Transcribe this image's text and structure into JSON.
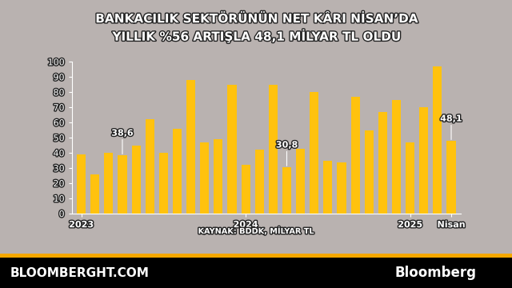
{
  "chart_data": {
    "type": "bar",
    "title": "BANKACILIK SEKTÖRÜNÜN NET KÂRI NİSAN’DA\nYILLIK %56 ARTIŞLA 48,1 MİLYAR TL OLDU",
    "source": "KAYNAK: BDDK, MİLYAR TL",
    "categories": [
      "2023",
      null,
      null,
      null,
      null,
      null,
      null,
      null,
      null,
      null,
      null,
      null,
      "2024",
      null,
      null,
      null,
      null,
      null,
      null,
      null,
      null,
      null,
      null,
      null,
      "2025",
      null,
      null,
      "Nisan"
    ],
    "values": [
      39,
      26,
      40,
      38.6,
      45,
      62,
      40,
      56,
      88,
      47,
      49,
      85,
      32,
      42,
      85,
      30.8,
      43,
      80,
      35,
      34,
      77,
      55,
      67,
      75,
      47,
      70,
      97,
      48.1
    ],
    "value_labels": [
      null,
      null,
      null,
      "38,6",
      null,
      null,
      null,
      null,
      null,
      null,
      null,
      null,
      null,
      null,
      null,
      "30,8",
      null,
      null,
      null,
      null,
      null,
      null,
      null,
      null,
      null,
      null,
      null,
      "48,1"
    ],
    "data_labels": true,
    "color": "#ffc20e",
    "ylim": [
      0,
      100
    ],
    "yticks": [
      0,
      10,
      20,
      30,
      40,
      50,
      60,
      70,
      80,
      90,
      100
    ],
    "grid": false
  },
  "footer": {
    "left": "BLOOMBERGHT.COM",
    "right": "Bloomberg"
  }
}
